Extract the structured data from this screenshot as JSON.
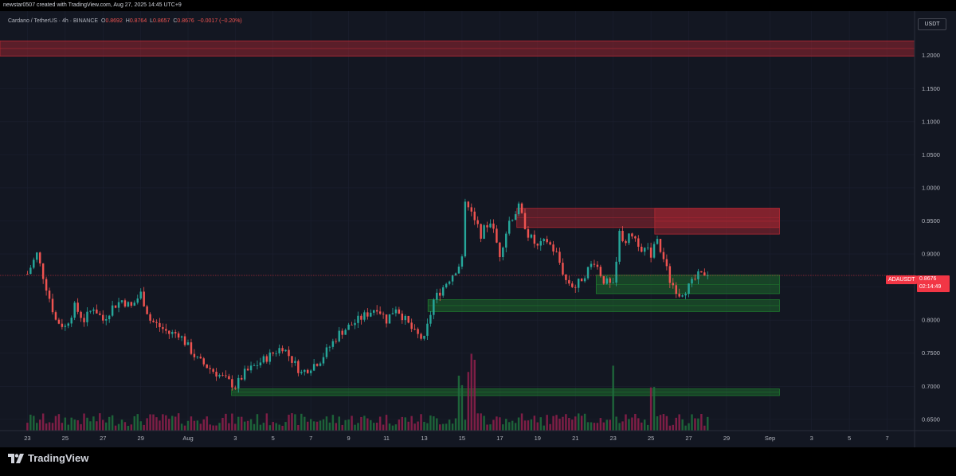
{
  "header": {
    "credit": "newstar0507 created with TradingView.com, Aug 27, 2025 14:45 UTC+9"
  },
  "symbol": {
    "name": "Cardano / TetherUS · 4h · BINANCE",
    "o_label": "O",
    "o": "0.8692",
    "h_label": "H",
    "h": "0.8764",
    "l_label": "L",
    "l": "0.8657",
    "c_label": "C",
    "c": "0.8676",
    "change": "−0.0017 (−0.20%)"
  },
  "currency": "USDT",
  "last_price": {
    "ticker": "ADAUSDT",
    "value": "0.8676",
    "countdown": "02:14:49"
  },
  "branding": {
    "name": "TradingView"
  },
  "colors": {
    "background": "#131722",
    "up": "#26a69a",
    "down": "#ef5350",
    "resistance_zone": "#b22833",
    "support_zone": "#1f7a2e",
    "volume_up": "#1f6b3c",
    "volume_down": "#8b1f4a"
  },
  "chart_data": {
    "type": "candlestick",
    "title": "Cardano / TetherUS · 4h · BINANCE",
    "y_axis": {
      "ticks": [
        "1.2000",
        "1.1500",
        "1.1000",
        "1.0500",
        "1.0000",
        "0.9500",
        "0.9000",
        "0.8500",
        "0.8000",
        "0.7500",
        "0.7000",
        "0.6500"
      ],
      "tick_values": [
        1.2,
        1.15,
        1.1,
        1.05,
        1.0,
        0.95,
        0.9,
        0.85,
        0.8,
        0.75,
        0.7,
        0.65
      ],
      "ylim": [
        0.633,
        1.267
      ]
    },
    "x_axis": {
      "ticks": [
        "23",
        "25",
        "27",
        "29",
        "Aug",
        "3",
        "5",
        "7",
        "9",
        "11",
        "13",
        "15",
        "17",
        "19",
        "21",
        "23",
        "25",
        "27",
        "29",
        "Sep",
        "3",
        "5",
        "7"
      ],
      "tick_days": [
        0,
        2,
        4,
        6,
        8.5,
        11,
        13,
        15,
        17,
        19,
        21,
        23,
        25,
        27,
        29,
        31,
        33,
        35,
        37,
        39.3,
        41.5,
        43.5,
        45.5
      ],
      "start_date": "Jul 23",
      "xlim": [
        -1.45,
        46.95
      ]
    },
    "zones": [
      {
        "kind": "resistance",
        "day_start": -1.45,
        "day_end": 46.95,
        "low": 1.199,
        "high": 1.222
      },
      {
        "kind": "resistance",
        "day_start": 25.9,
        "day_end": 39.8,
        "low": 0.94,
        "high": 0.969
      },
      {
        "kind": "resistance",
        "day_start": 33.2,
        "day_end": 39.8,
        "low": 0.93,
        "high": 0.969
      },
      {
        "kind": "support",
        "day_start": 30.1,
        "day_end": 39.8,
        "low": 0.84,
        "high": 0.868
      },
      {
        "kind": "support",
        "day_start": 21.2,
        "day_end": 39.8,
        "low": 0.813,
        "high": 0.831
      },
      {
        "kind": "support",
        "day_start": 10.8,
        "day_end": 39.8,
        "low": 0.686,
        "high": 0.696
      }
    ],
    "last_close": 0.8676,
    "path": [
      [
        0,
        0.87
      ],
      [
        0.5,
        0.9
      ],
      [
        1,
        0.85
      ],
      [
        1.5,
        0.8
      ],
      [
        2,
        0.79
      ],
      [
        2.5,
        0.82
      ],
      [
        3,
        0.8
      ],
      [
        3.5,
        0.82
      ],
      [
        4,
        0.8
      ],
      [
        4.5,
        0.82
      ],
      [
        5,
        0.83
      ],
      [
        5.5,
        0.82
      ],
      [
        6,
        0.84
      ],
      [
        6.5,
        0.8
      ],
      [
        7,
        0.79
      ],
      [
        7.5,
        0.78
      ],
      [
        8,
        0.78
      ],
      [
        8.5,
        0.76
      ],
      [
        9,
        0.74
      ],
      [
        9.5,
        0.73
      ],
      [
        10,
        0.72
      ],
      [
        10.5,
        0.71
      ],
      [
        11,
        0.7
      ],
      [
        11.5,
        0.72
      ],
      [
        12,
        0.73
      ],
      [
        12.5,
        0.74
      ],
      [
        13,
        0.75
      ],
      [
        13.5,
        0.76
      ],
      [
        14,
        0.74
      ],
      [
        14.5,
        0.72
      ],
      [
        15,
        0.73
      ],
      [
        15.5,
        0.74
      ],
      [
        16,
        0.76
      ],
      [
        16.5,
        0.78
      ],
      [
        17,
        0.79
      ],
      [
        17.5,
        0.8
      ],
      [
        18,
        0.81
      ],
      [
        18.5,
        0.82
      ],
      [
        19,
        0.8
      ],
      [
        19.5,
        0.82
      ],
      [
        20,
        0.8
      ],
      [
        20.5,
        0.78
      ],
      [
        21,
        0.77
      ],
      [
        21.5,
        0.83
      ],
      [
        22,
        0.85
      ],
      [
        22.5,
        0.87
      ],
      [
        23,
        0.89
      ],
      [
        23.2,
        0.99
      ],
      [
        23.5,
        0.96
      ],
      [
        24,
        0.93
      ],
      [
        24.5,
        0.95
      ],
      [
        25,
        0.9
      ],
      [
        25.5,
        0.95
      ],
      [
        26,
        0.97
      ],
      [
        26.5,
        0.93
      ],
      [
        27,
        0.91
      ],
      [
        27.5,
        0.92
      ],
      [
        28,
        0.9
      ],
      [
        28.5,
        0.86
      ],
      [
        29,
        0.85
      ],
      [
        29.5,
        0.87
      ],
      [
        30,
        0.89
      ],
      [
        30.5,
        0.86
      ],
      [
        31,
        0.85
      ],
      [
        31.3,
        0.93
      ],
      [
        31.7,
        0.92
      ],
      [
        32,
        0.93
      ],
      [
        32.5,
        0.91
      ],
      [
        33,
        0.9
      ],
      [
        33.3,
        0.92
      ],
      [
        33.7,
        0.89
      ],
      [
        34,
        0.86
      ],
      [
        34.5,
        0.84
      ],
      [
        35,
        0.85
      ],
      [
        35.5,
        0.867
      ],
      [
        36,
        0.8676
      ]
    ],
    "volume_peaks": [
      {
        "day": 22.9,
        "level": 0.6
      },
      {
        "day": 23.3,
        "level": 0.85
      },
      {
        "day": 23.6,
        "level": 1.0
      },
      {
        "day": 31.0,
        "level": 0.8
      },
      {
        "day": 33.1,
        "level": 0.5
      }
    ]
  }
}
